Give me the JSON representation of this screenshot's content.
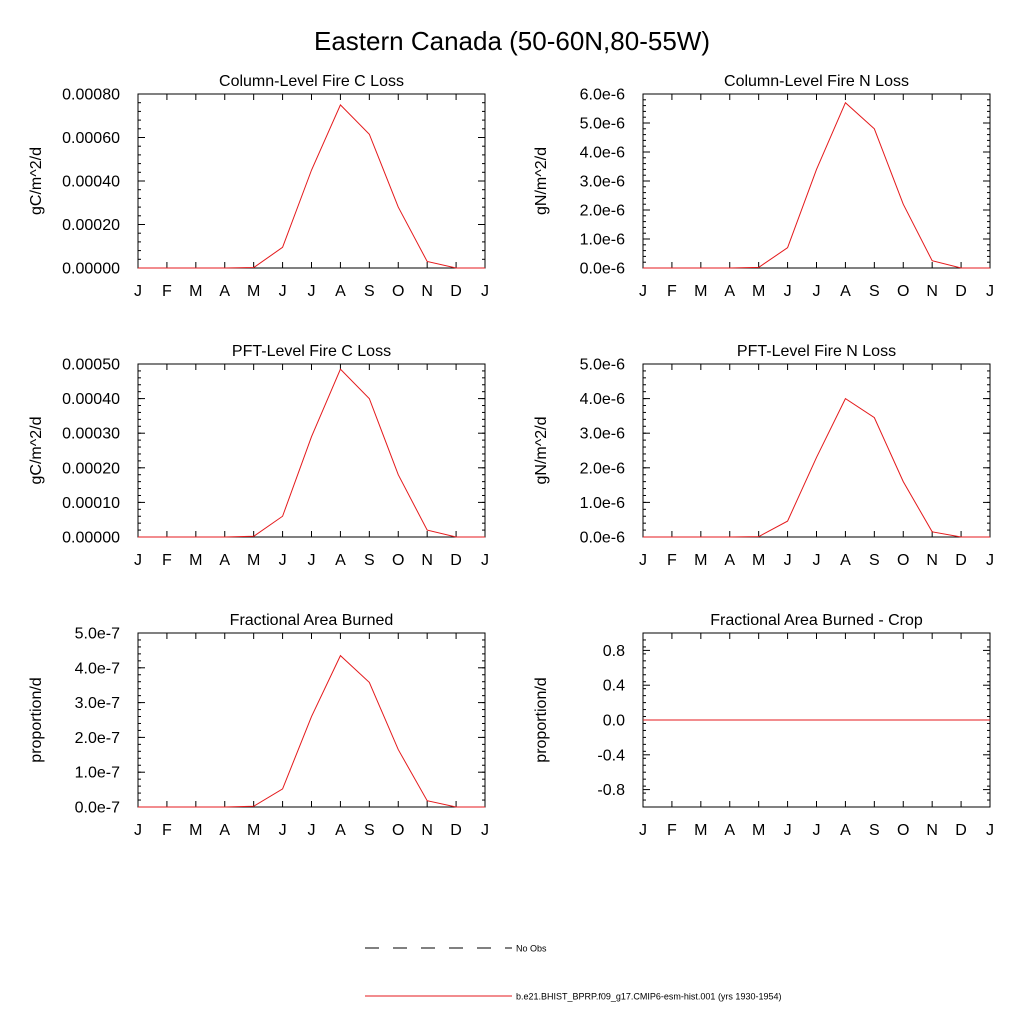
{
  "figure": {
    "title": "Eastern Canada (50-60N,80-55W)",
    "series_color": "#e41a1c",
    "legend": {
      "entries": [
        {
          "label": "No Obs",
          "style": "dashed",
          "color": "#000000"
        },
        {
          "label": "b.e21.BHIST_BPRP.f09_g17.CMIP6-esm-hist.001 (yrs 1930-1954)",
          "style": "solid",
          "color": "#e41a1c"
        }
      ]
    }
  },
  "chart_data": [
    {
      "type": "line",
      "title": "Column-Level Fire C Loss",
      "ylabel": "gC/m^2/d",
      "x_tick_labels": [
        "J",
        "F",
        "M",
        "A",
        "M",
        "J",
        "J",
        "A",
        "S",
        "O",
        "N",
        "D",
        "J"
      ],
      "y_ticks": [
        0,
        0.0002,
        0.0004,
        0.0006,
        0.0008
      ],
      "y_tick_labels": [
        "0.00000",
        "0.00020",
        "0.00040",
        "0.00060",
        "0.00080"
      ],
      "ylim": [
        0,
        0.0008
      ],
      "series": [
        {
          "values": [
            0,
            0,
            0,
            0,
            2e-06,
            9.5e-05,
            0.00045,
            0.00075,
            0.000615,
            0.00028,
            3e-05,
            0,
            0
          ]
        }
      ]
    },
    {
      "type": "line",
      "title": "Column-Level Fire N Loss",
      "ylabel": "gN/m^2/d",
      "x_tick_labels": [
        "J",
        "F",
        "M",
        "A",
        "M",
        "J",
        "J",
        "A",
        "S",
        "O",
        "N",
        "D",
        "J"
      ],
      "y_ticks": [
        0,
        1e-06,
        2e-06,
        3e-06,
        4e-06,
        5e-06,
        6e-06
      ],
      "y_tick_labels": [
        "0.0e-6",
        "1.0e-6",
        "2.0e-6",
        "3.0e-6",
        "4.0e-6",
        "5.0e-6",
        "6.0e-6"
      ],
      "ylim": [
        0,
        6e-06
      ],
      "series": [
        {
          "values": [
            0,
            0,
            0,
            0,
            2e-08,
            7e-07,
            3.4e-06,
            5.7e-06,
            4.8e-06,
            2.2e-06,
            2.5e-07,
            0,
            0
          ]
        }
      ]
    },
    {
      "type": "line",
      "title": "PFT-Level Fire C Loss",
      "ylabel": "gC/m^2/d",
      "x_tick_labels": [
        "J",
        "F",
        "M",
        "A",
        "M",
        "J",
        "J",
        "A",
        "S",
        "O",
        "N",
        "D",
        "J"
      ],
      "y_ticks": [
        0,
        0.0001,
        0.0002,
        0.0003,
        0.0004,
        0.0005
      ],
      "y_tick_labels": [
        "0.00000",
        "0.00010",
        "0.00020",
        "0.00030",
        "0.00040",
        "0.00050"
      ],
      "ylim": [
        0,
        0.0005
      ],
      "series": [
        {
          "values": [
            0,
            0,
            0,
            0,
            2e-06,
            6e-05,
            0.00029,
            0.000485,
            0.0004,
            0.00018,
            2e-05,
            0,
            0
          ]
        }
      ]
    },
    {
      "type": "line",
      "title": "PFT-Level Fire N Loss",
      "ylabel": "gN/m^2/d",
      "x_tick_labels": [
        "J",
        "F",
        "M",
        "A",
        "M",
        "J",
        "J",
        "A",
        "S",
        "O",
        "N",
        "D",
        "J"
      ],
      "y_ticks": [
        0,
        1e-06,
        2e-06,
        3e-06,
        4e-06,
        5e-06
      ],
      "y_tick_labels": [
        "0.0e-6",
        "1.0e-6",
        "2.0e-6",
        "3.0e-6",
        "4.0e-6",
        "5.0e-6"
      ],
      "ylim": [
        0,
        5e-06
      ],
      "series": [
        {
          "values": [
            0,
            0,
            0,
            0,
            1e-08,
            4.6e-07,
            2.3e-06,
            4e-06,
            3.45e-06,
            1.6e-06,
            1.5e-07,
            0,
            0
          ]
        }
      ]
    },
    {
      "type": "line",
      "title": "Fractional Area Burned",
      "ylabel": "proportion/d",
      "x_tick_labels": [
        "J",
        "F",
        "M",
        "A",
        "M",
        "J",
        "J",
        "A",
        "S",
        "O",
        "N",
        "D",
        "J"
      ],
      "y_ticks": [
        0,
        1e-07,
        2e-07,
        3e-07,
        4e-07,
        5e-07
      ],
      "y_tick_labels": [
        "0.0e-7",
        "1.0e-7",
        "2.0e-7",
        "3.0e-7",
        "4.0e-7",
        "5.0e-7"
      ],
      "ylim": [
        0,
        5e-07
      ],
      "series": [
        {
          "values": [
            0,
            0,
            0,
            0,
            2e-09,
            5.2e-08,
            2.6e-07,
            4.35e-07,
            3.58e-07,
            1.65e-07,
            1.8e-08,
            0,
            0
          ]
        }
      ]
    },
    {
      "type": "line",
      "title": "Fractional Area Burned - Crop",
      "ylabel": "proportion/d",
      "x_tick_labels": [
        "J",
        "F",
        "M",
        "A",
        "M",
        "J",
        "J",
        "A",
        "S",
        "O",
        "N",
        "D",
        "J"
      ],
      "y_ticks": [
        -0.8,
        -0.4,
        0,
        0.4,
        0.8
      ],
      "y_tick_labels": [
        "-0.8",
        "-0.4",
        "0.0",
        "0.4",
        "0.8"
      ],
      "ylim": [
        -1,
        1
      ],
      "series": [
        {
          "values": [
            0,
            0,
            0,
            0,
            0,
            0,
            0,
            0,
            0,
            0,
            0,
            0,
            0
          ]
        }
      ]
    }
  ]
}
